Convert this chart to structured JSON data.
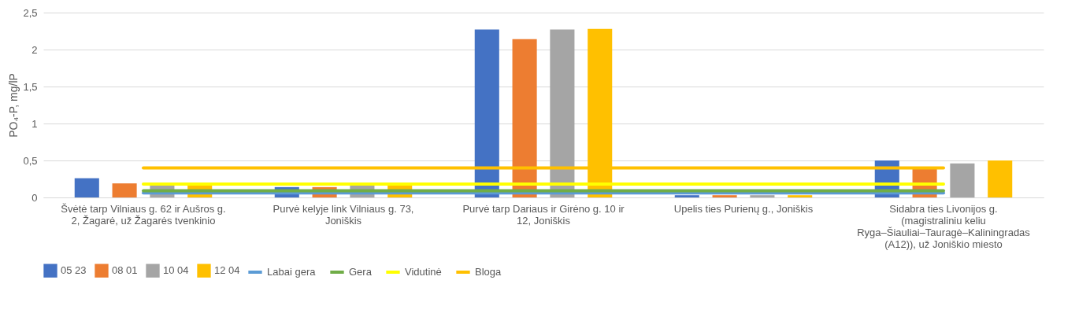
{
  "chart_data": {
    "type": "bar",
    "ylabel": "PO₄-P, mg/lP",
    "categories": [
      "Švėtė tarp Vilniaus g. 62 ir Aušros g. 2, Žagarė, už Žagarės tvenkinio",
      "Purvė kelyje link Vilniaus g. 73, Joniškis",
      "Purvė tarp Dariaus ir Girėno g. 10 ir 12, Joniškis",
      "Upelis ties Purienų g., Joniškis",
      "Sidabra ties Livonijos g. (magistraliniu keliu Ryga–Šiauliai–Tauragė–Kaliningradas (A12)), už Joniškio miesto"
    ],
    "series": [
      {
        "name": "05 23",
        "color": "#4472c4",
        "values": [
          0.26,
          0.14,
          2.27,
          0.03,
          0.5
        ]
      },
      {
        "name": "08 01",
        "color": "#ed7d31",
        "values": [
          0.19,
          0.14,
          2.14,
          0.03,
          0.4
        ]
      },
      {
        "name": "10 04",
        "color": "#a5a5a5",
        "values": [
          0.16,
          0.16,
          2.27,
          0.03,
          0.46
        ]
      },
      {
        "name": "12 04",
        "color": "#ffc000",
        "values": [
          0.16,
          0.16,
          2.28,
          0.03,
          0.5
        ]
      },
      {
        "name": "Labai gera",
        "type": "line",
        "color": "#5b9bd5",
        "values": [
          0.06,
          0.06,
          0.06,
          0.06,
          0.06
        ]
      },
      {
        "name": "Gera",
        "type": "line",
        "color": "#70ad47",
        "values": [
          0.09,
          0.09,
          0.09,
          0.09,
          0.09
        ]
      },
      {
        "name": "Vidutinė",
        "type": "line",
        "color": "#ffff00",
        "values": [
          0.18,
          0.18,
          0.18,
          0.18,
          0.18
        ]
      },
      {
        "name": "Bloga",
        "type": "line",
        "color": "#ffc000",
        "values": [
          0.4,
          0.4,
          0.4,
          0.4,
          0.4
        ]
      }
    ],
    "ylim": [
      0,
      2.5
    ],
    "yticks": [
      0,
      {
        "value": 0.5,
        "label": "0,5"
      },
      1,
      {
        "value": 1.5,
        "label": "1,5"
      },
      2,
      {
        "value": 2.5,
        "label": "2,5"
      }
    ],
    "grid": "y",
    "legend": "bottom",
    "marker": "none",
    "line_style": "solid"
  }
}
